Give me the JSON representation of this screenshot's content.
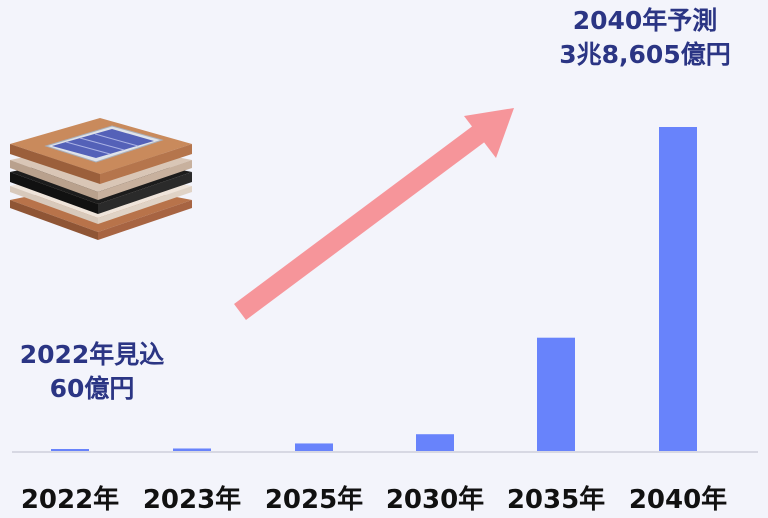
{
  "chart_data": {
    "type": "bar",
    "categories": [
      "2022年",
      "2023年",
      "2025年",
      "2030年",
      "2035年",
      "2040年"
    ],
    "values": [
      60,
      300,
      900,
      2000,
      13500,
      38605
    ],
    "ylim": [
      0,
      40000
    ],
    "grid": false,
    "legend": "none",
    "annotations": [
      {
        "lines": [
          "2040年予測",
          "3兆8,605億円"
        ]
      },
      {
        "lines": [
          "2022年見込",
          "60億円"
        ]
      }
    ]
  },
  "colors": {
    "background": "#f3f4fb",
    "bar": "#6883fb",
    "arrow": "#f6959a",
    "annotation_text": "#2b3584",
    "axis_labels": "#111111",
    "baseline": "#d7d8e3"
  },
  "illustration": "perovskite-solar-cell-icon"
}
